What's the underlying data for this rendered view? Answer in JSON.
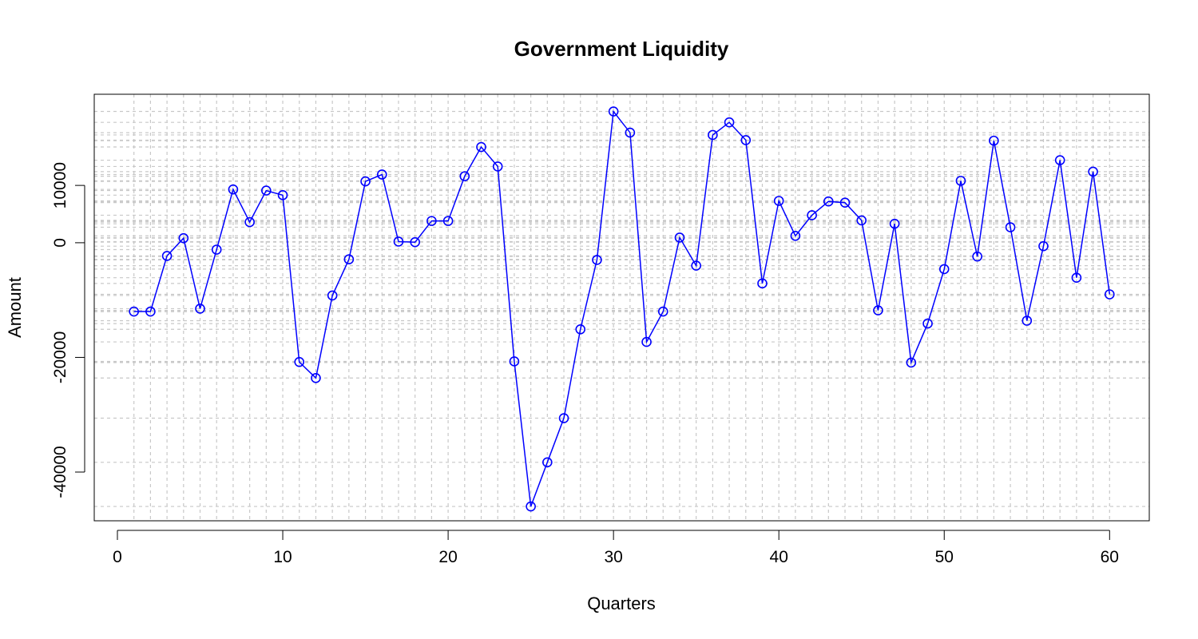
{
  "chart_data": {
    "type": "line",
    "title": "Government Liquidity",
    "xlabel": "Quarters",
    "ylabel": "Amount",
    "xlim": [
      -1.4,
      62.4
    ],
    "ylim": [
      -48500,
      25900
    ],
    "x_ticks": [
      0,
      10,
      20,
      30,
      40,
      50,
      60
    ],
    "y_ticks": [
      -40000,
      -20000,
      0,
      10000
    ],
    "grid": true,
    "grid_style": "dotted light gray, vertical at each quarter, horizontal at each data value",
    "marker": "open circle",
    "colors": {
      "series": "#0000ff",
      "grid": "#c8c8c8",
      "axis": "#000000"
    },
    "series": [
      {
        "x": [
          1,
          2,
          3,
          4,
          5,
          6,
          7,
          8,
          9,
          10,
          11,
          12,
          13,
          14,
          15,
          16,
          17,
          18,
          19,
          20,
          21,
          22,
          23,
          24,
          25,
          26,
          27,
          28,
          29,
          30,
          31,
          32,
          33,
          34,
          35,
          36,
          37,
          38,
          39,
          40,
          41,
          42,
          43,
          44,
          45,
          46,
          47,
          48,
          49,
          50,
          51,
          52,
          53,
          54,
          55,
          56,
          57,
          58,
          59,
          60
        ],
        "values": [
          -12000,
          -12000,
          -2300,
          800,
          -11500,
          -1200,
          9300,
          3600,
          9100,
          8300,
          -20800,
          -23600,
          -9200,
          -2900,
          10700,
          11900,
          200,
          100,
          3800,
          3800,
          11600,
          16700,
          13300,
          -20700,
          -46000,
          -38300,
          -30600,
          -15100,
          -3000,
          22900,
          19200,
          -17300,
          -12000,
          900,
          -4000,
          18800,
          21000,
          17900,
          -7100,
          7300,
          1200,
          4800,
          7200,
          7000,
          3900,
          -11800,
          3300,
          -20900,
          -14100,
          -4600,
          10800,
          -2400,
          17800,
          2700,
          -13600,
          -600,
          14400,
          -6100,
          12400,
          -9000
        ]
      }
    ]
  }
}
